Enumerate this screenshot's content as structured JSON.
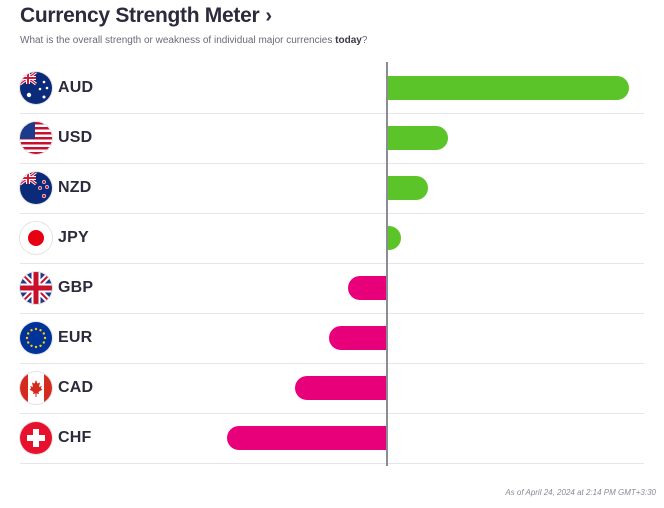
{
  "header": {
    "title": "Currency Strength Meter",
    "chevron": "›",
    "subtitle_prefix": "What is the overall strength or weakness of individual major currencies",
    "subtitle_emphasis": "today",
    "subtitle_suffix": "?"
  },
  "colors": {
    "positive": "#5ac428",
    "negative": "#e8007a",
    "axis": "#8c8c94"
  },
  "scale_max": 1.0,
  "currencies": [
    {
      "code": "AUD",
      "flag_icon": "australia-flag-icon",
      "strength": 1.0
    },
    {
      "code": "USD",
      "flag_icon": "usa-flag-icon",
      "strength": 0.25
    },
    {
      "code": "NZD",
      "flag_icon": "new-zealand-flag-icon",
      "strength": 0.17
    },
    {
      "code": "JPY",
      "flag_icon": "japan-flag-icon",
      "strength": 0.05
    },
    {
      "code": "GBP",
      "flag_icon": "uk-flag-icon",
      "strength": -0.16
    },
    {
      "code": "EUR",
      "flag_icon": "eu-flag-icon",
      "strength": -0.24
    },
    {
      "code": "CAD",
      "flag_icon": "canada-flag-icon",
      "strength": -0.38
    },
    {
      "code": "CHF",
      "flag_icon": "switzerland-flag-icon",
      "strength": -0.66
    }
  ],
  "footer": {
    "timestamp": "As of April 24, 2024 at 2:14 PM GMT+3:30"
  }
}
